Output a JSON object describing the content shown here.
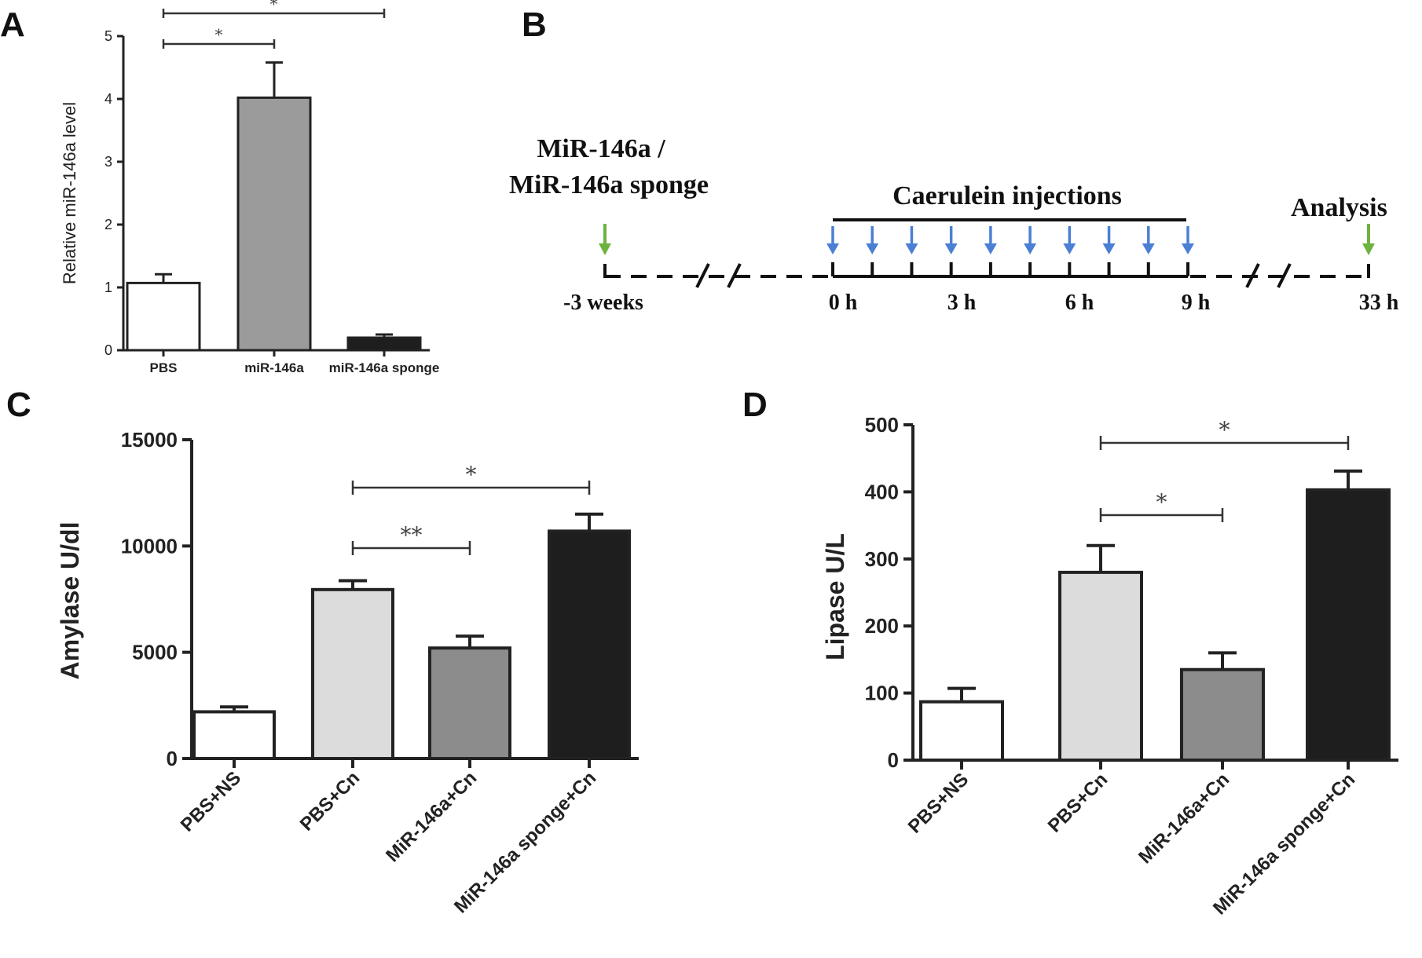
{
  "panels": {
    "a": "A",
    "b": "B",
    "c": "C",
    "d": "D"
  },
  "colors": {
    "white": "#ffffff",
    "light_gray": "#dcdcdc",
    "gray": "#8c8c8c",
    "black": "#1e1e1e",
    "green_arrow": "#6db33f",
    "blue_arrow": "#4a7fd4"
  },
  "timeline": {
    "title_line1": "MiR-146a /",
    "title_line2": "MiR-146a sponge",
    "injections_label": "Caerulein injections",
    "analysis_label": "Analysis",
    "time_start": "-3 weeks",
    "time_0": "0 h",
    "time_3": "3 h",
    "time_6": "6 h",
    "time_9": "9 h",
    "time_end": "33 h",
    "injection_count": 10
  },
  "chart_data": [
    {
      "type": "bar",
      "panel": "A",
      "ylabel": "Relative miR-146a level",
      "categories": [
        "PBS",
        "miR-146a",
        "miR-146a sponge"
      ],
      "values": [
        1.07,
        4.02,
        0.2
      ],
      "errors": [
        0.14,
        0.56,
        0.05
      ],
      "colors": [
        "#ffffff",
        "#9b9b9b",
        "#1e1e1e"
      ],
      "ylim": [
        0,
        5
      ],
      "yticks": [
        "0",
        "1",
        "2",
        "3",
        "4",
        "5"
      ],
      "brackets": [
        {
          "from": 0,
          "to": 1,
          "label": "*"
        },
        {
          "from": 0,
          "to": 2,
          "label": "*"
        }
      ]
    },
    {
      "type": "bar",
      "panel": "C",
      "ylabel": "Amylase U/dl",
      "categories": [
        "PBS+NS",
        "PBS+Cn",
        "MiR-146a+Cn",
        "MiR-146a sponge+Cn"
      ],
      "values": [
        2200,
        7950,
        5200,
        10700
      ],
      "errors": [
        230,
        420,
        560,
        800
      ],
      "colors": [
        "#ffffff",
        "#dcdcdc",
        "#8c8c8c",
        "#1e1e1e"
      ],
      "ylim": [
        0,
        15000
      ],
      "yticks": [
        "0",
        "5000",
        "10000",
        "15000"
      ],
      "brackets": [
        {
          "from": 1,
          "to": 2,
          "label": "**"
        },
        {
          "from": 1,
          "to": 3,
          "label": "*"
        }
      ]
    },
    {
      "type": "bar",
      "panel": "D",
      "ylabel": "Lipase U/L",
      "categories": [
        "PBS+NS",
        "PBS+Cn",
        "MiR-146a+Cn",
        "MiR-146a sponge+Cn"
      ],
      "values": [
        87,
        280,
        135,
        403
      ],
      "errors": [
        20,
        40,
        25,
        28
      ],
      "colors": [
        "#ffffff",
        "#dcdcdc",
        "#8c8c8c",
        "#1e1e1e"
      ],
      "ylim": [
        0,
        500
      ],
      "yticks": [
        "0",
        "100",
        "200",
        "300",
        "400",
        "500"
      ],
      "brackets": [
        {
          "from": 1,
          "to": 2,
          "label": "*"
        },
        {
          "from": 1,
          "to": 3,
          "label": "*"
        }
      ]
    }
  ]
}
